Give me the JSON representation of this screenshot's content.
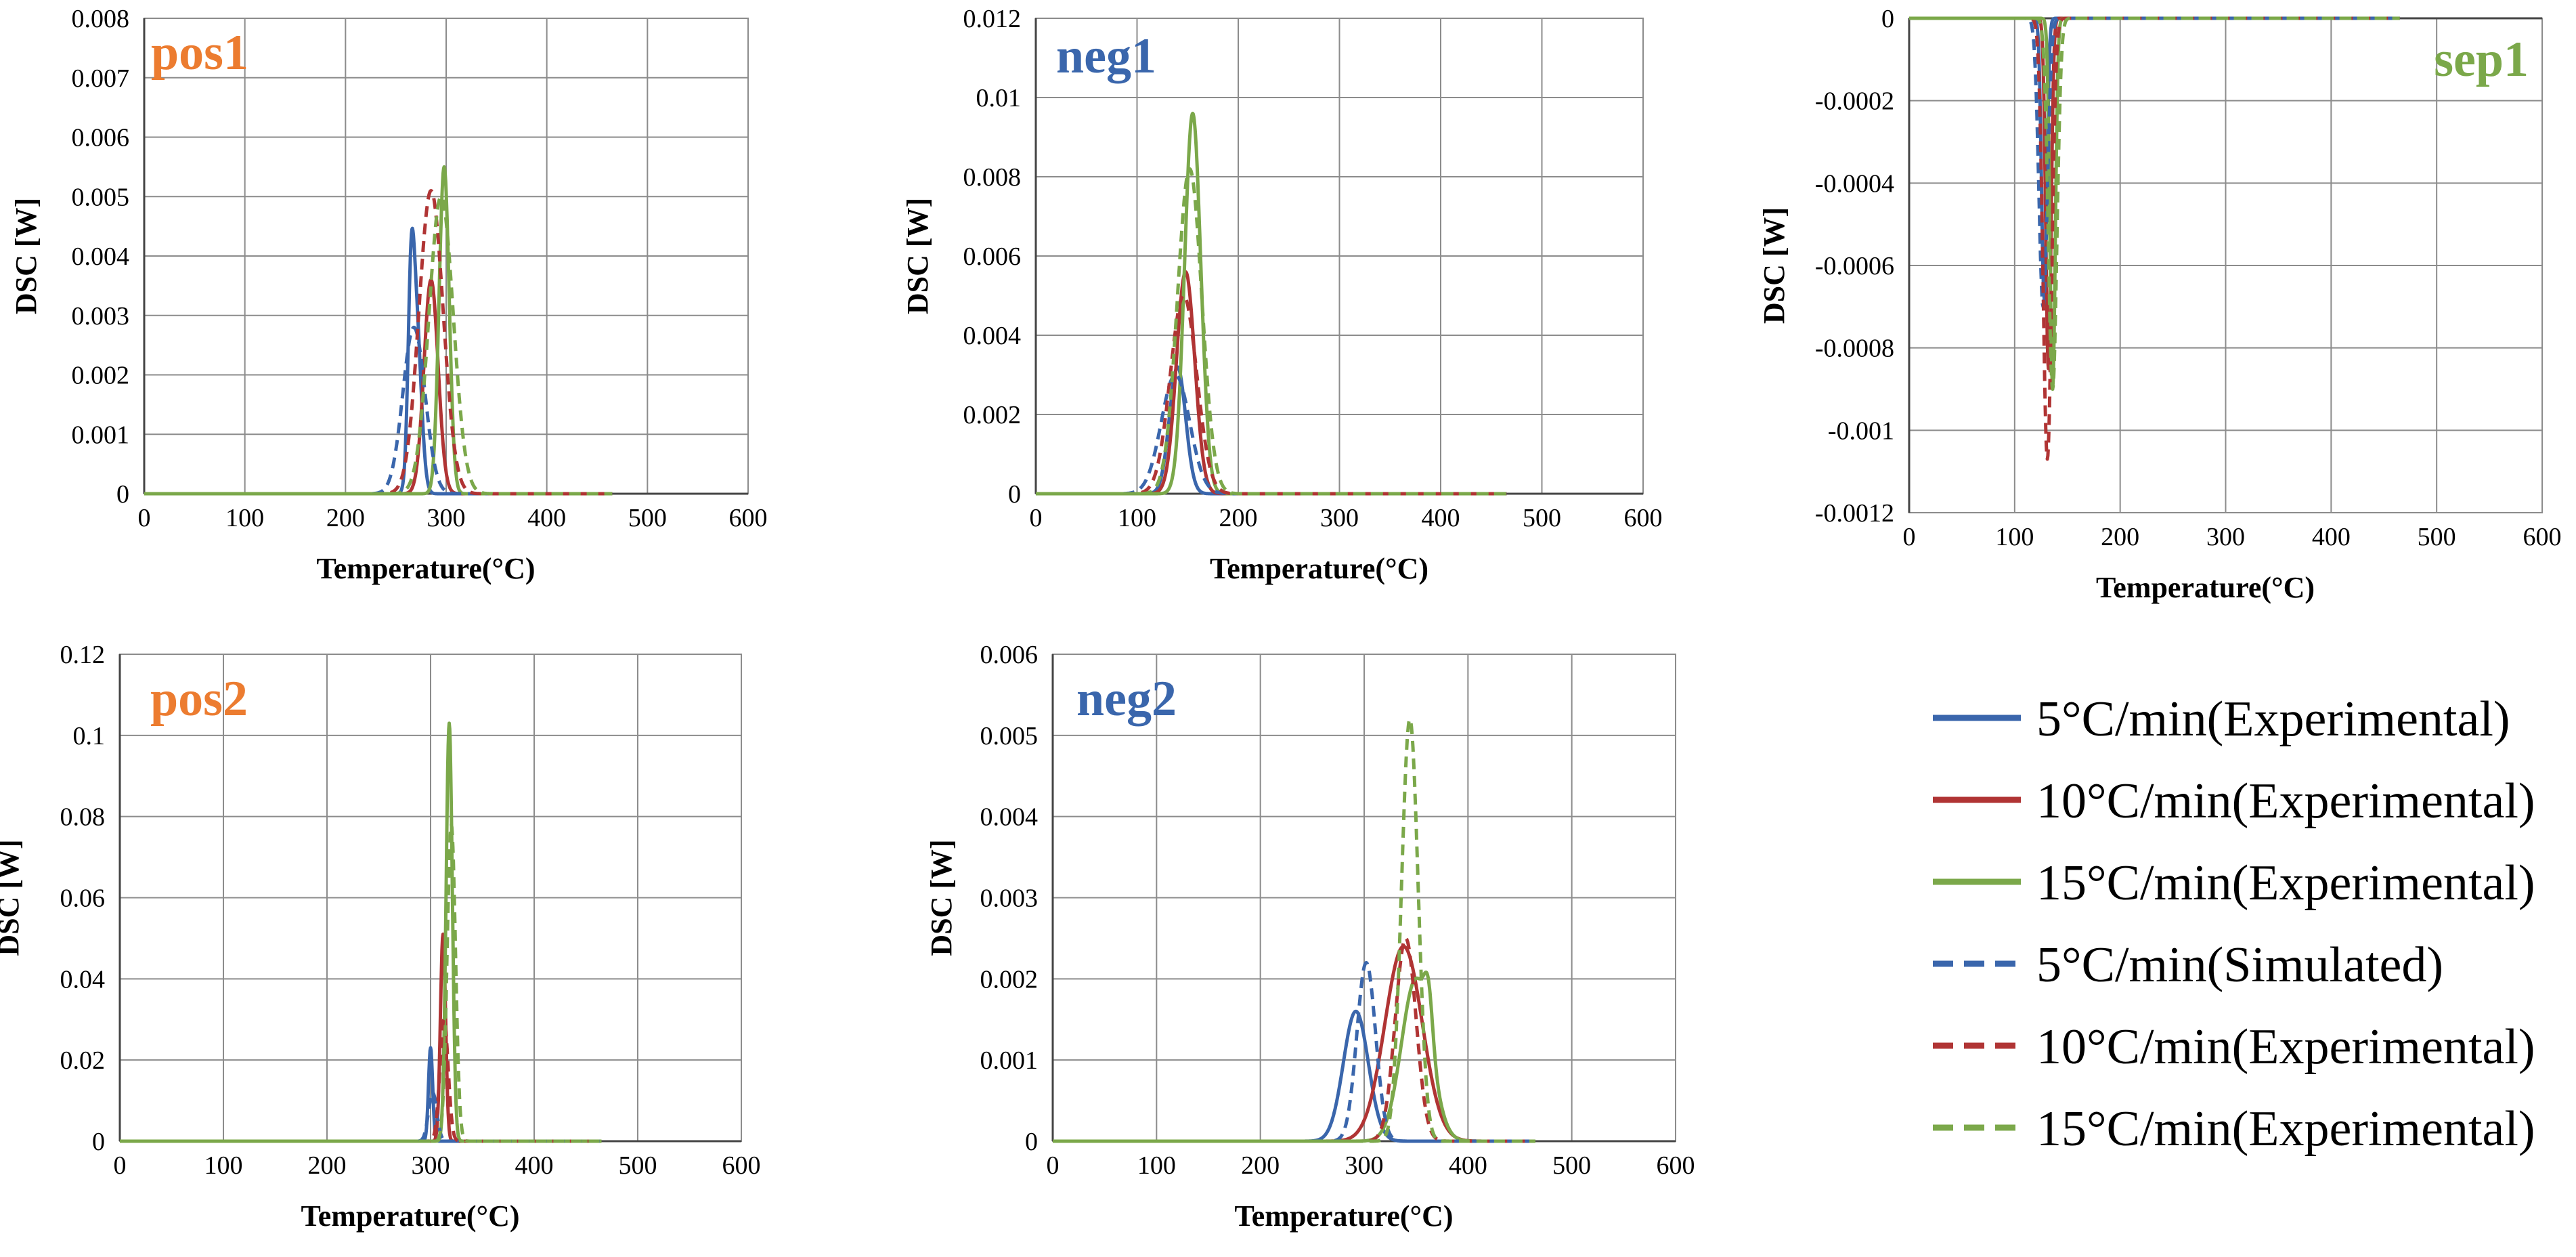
{
  "figure": {
    "legend": [
      {
        "label": "5°C/min(Experimental)",
        "color": "#3A66AC",
        "dashed": false
      },
      {
        "label": "10°C/min(Experimental)",
        "color": "#B03434",
        "dashed": false
      },
      {
        "label": "15°C/min(Experimental)",
        "color": "#7BA84A",
        "dashed": false
      },
      {
        "label": "5°C/min(Simulated)",
        "color": "#3A66AC",
        "dashed": true
      },
      {
        "label": "10°C/min(Experimental)",
        "color": "#B03434",
        "dashed": true
      },
      {
        "label": "15°C/min(Experimental)",
        "color": "#7BA84A",
        "dashed": true
      }
    ]
  },
  "chart_data": [
    {
      "id": "pos1",
      "type": "line",
      "title": "pos1",
      "title_color": "#EC7C30",
      "xlabel": "Temperature(°C)",
      "ylabel": "DSC [W]",
      "xlim": [
        0,
        600
      ],
      "ylim": [
        0,
        0.008
      ],
      "xticks": [
        "0",
        "100",
        "200",
        "300",
        "400",
        "500",
        "600"
      ],
      "yticks": [
        "0",
        "0.001",
        "0.002",
        "0.003",
        "0.004",
        "0.005",
        "0.006",
        "0.007",
        "0.008"
      ],
      "grid": true,
      "x_end": 465,
      "series": [
        {
          "name": "5°C/min(Experimental)",
          "color": "#3A66AC",
          "dashed": false,
          "peaks": [
            {
              "x": 270,
              "y": 0.003,
              "w": 5
            },
            {
              "x": 265,
              "y": 0.0024,
              "w": 3
            }
          ]
        },
        {
          "name": "10°C/min(Experimental)",
          "color": "#B03434",
          "dashed": false,
          "peaks": [
            {
              "x": 285,
              "y": 0.0036,
              "w": 7
            }
          ]
        },
        {
          "name": "15°C/min(Experimental)",
          "color": "#7BA84A",
          "dashed": false,
          "peaks": [
            {
              "x": 298,
              "y": 0.0055,
              "w": 5
            }
          ]
        },
        {
          "name": "5°C/min(Simulated)",
          "color": "#3A66AC",
          "dashed": true,
          "peaks": [
            {
              "x": 268,
              "y": 0.0028,
              "w": 11
            }
          ]
        },
        {
          "name": "10°C/min(Experimental)",
          "color": "#B03434",
          "dashed": true,
          "peaks": [
            {
              "x": 285,
              "y": 0.0051,
              "w": 12
            }
          ]
        },
        {
          "name": "15°C/min(Experimental)",
          "color": "#7BA84A",
          "dashed": true,
          "peaks": [
            {
              "x": 295,
              "y": 0.005,
              "w": 12
            }
          ]
        }
      ]
    },
    {
      "id": "neg1",
      "type": "line",
      "title": "neg1",
      "title_color": "#3A66AC",
      "xlabel": "Temperature(°C)",
      "ylabel": "DSC [W]",
      "xlim": [
        0,
        600
      ],
      "ylim": [
        0,
        0.012
      ],
      "xticks": [
        "0",
        "100",
        "200",
        "300",
        "400",
        "500",
        "600"
      ],
      "yticks": [
        "0",
        "0.002",
        "0.004",
        "0.006",
        "0.008",
        "0.01",
        "0.012"
      ],
      "grid": true,
      "x_end": 465,
      "series": [
        {
          "name": "5°C/min(Experimental)",
          "color": "#3A66AC",
          "dashed": false,
          "peaks": [
            {
              "x": 140,
              "y": 0.0032,
              "w": 8
            }
          ]
        },
        {
          "name": "10°C/min(Experimental)",
          "color": "#B03434",
          "dashed": false,
          "peaks": [
            {
              "x": 148,
              "y": 0.0056,
              "w": 9
            }
          ]
        },
        {
          "name": "15°C/min(Experimental)",
          "color": "#7BA84A",
          "dashed": false,
          "peaks": [
            {
              "x": 155,
              "y": 0.0096,
              "w": 8
            }
          ]
        },
        {
          "name": "5°C/min(Simulated)",
          "color": "#3A66AC",
          "dashed": true,
          "peaks": [
            {
              "x": 138,
              "y": 0.003,
              "w": 14
            }
          ]
        },
        {
          "name": "10°C/min(Experimental)",
          "color": "#B03434",
          "dashed": true,
          "peaks": [
            {
              "x": 146,
              "y": 0.005,
              "w": 13
            }
          ]
        },
        {
          "name": "15°C/min(Experimental)",
          "color": "#7BA84A",
          "dashed": true,
          "peaks": [
            {
              "x": 152,
              "y": 0.0082,
              "w": 12
            }
          ]
        }
      ]
    },
    {
      "id": "sep1",
      "type": "line",
      "title": "sep1",
      "title_color": "#7BA84A",
      "xlabel": "Temperature(°C)",
      "ylabel": "DSC [W]",
      "xlim": [
        0,
        600
      ],
      "ylim": [
        -0.0012,
        0
      ],
      "xticks": [
        "0",
        "100",
        "200",
        "300",
        "400",
        "500",
        "600"
      ],
      "yticks": [
        "-0.0012",
        "-0.001",
        "-0.0008",
        "-0.0006",
        "-0.0004",
        "-0.0002",
        "0"
      ],
      "grid": true,
      "x_end": 465,
      "series": [
        {
          "name": "5°C/min(Experimental)",
          "color": "#3A66AC",
          "dashed": false,
          "peaks": [
            {
              "x": 128,
              "y": -0.00068,
              "w": 2.5
            }
          ]
        },
        {
          "name": "10°C/min(Experimental)",
          "color": "#B03434",
          "dashed": false,
          "peaks": [
            {
              "x": 132,
              "y": -0.00085,
              "w": 2.5
            }
          ]
        },
        {
          "name": "15°C/min(Experimental)",
          "color": "#7BA84A",
          "dashed": false,
          "peaks": [
            {
              "x": 136,
              "y": -0.0009,
              "w": 2.5
            }
          ]
        },
        {
          "name": "5°C/min(Simulated)",
          "color": "#3A66AC",
          "dashed": true,
          "peaks": [
            {
              "x": 127,
              "y": -0.0007,
              "w": 4
            }
          ]
        },
        {
          "name": "10°C/min(Experimental)",
          "color": "#B03434",
          "dashed": true,
          "peaks": [
            {
              "x": 131,
              "y": -0.00107,
              "w": 4
            }
          ]
        },
        {
          "name": "15°C/min(Experimental)",
          "color": "#7BA84A",
          "dashed": true,
          "peaks": [
            {
              "x": 136,
              "y": -0.0009,
              "w": 4
            }
          ]
        }
      ]
    },
    {
      "id": "pos2",
      "type": "line",
      "title": "pos2",
      "title_color": "#EC7C30",
      "xlabel": "Temperature(°C)",
      "ylabel": "DSC [W]",
      "xlim": [
        0,
        600
      ],
      "ylim": [
        0,
        0.12
      ],
      "xticks": [
        "0",
        "100",
        "200",
        "300",
        "400",
        "500",
        "600"
      ],
      "yticks": [
        "0",
        "0.02",
        "0.04",
        "0.06",
        "0.08",
        "0.1",
        "0.12"
      ],
      "grid": true,
      "x_end": 465,
      "series": [
        {
          "name": "5°C/min(Experimental)",
          "color": "#3A66AC",
          "dashed": false,
          "peaks": [
            {
              "x": 300,
              "y": 0.023,
              "w": 2
            }
          ]
        },
        {
          "name": "10°C/min(Experimental)",
          "color": "#B03434",
          "dashed": false,
          "peaks": [
            {
              "x": 312,
              "y": 0.051,
              "w": 2.5
            }
          ]
        },
        {
          "name": "15°C/min(Experimental)",
          "color": "#7BA84A",
          "dashed": false,
          "peaks": [
            {
              "x": 318,
              "y": 0.103,
              "w": 3
            }
          ]
        },
        {
          "name": "5°C/min(Simulated)",
          "color": "#3A66AC",
          "dashed": true,
          "peaks": [
            {
              "x": 302,
              "y": 0.012,
              "w": 4
            }
          ]
        },
        {
          "name": "10°C/min(Experimental)",
          "color": "#B03434",
          "dashed": true,
          "peaks": [
            {
              "x": 313,
              "y": 0.03,
              "w": 4
            }
          ]
        },
        {
          "name": "15°C/min(Experimental)",
          "color": "#7BA84A",
          "dashed": true,
          "peaks": [
            {
              "x": 320,
              "y": 0.078,
              "w": 4
            }
          ]
        }
      ]
    },
    {
      "id": "neg2",
      "type": "line",
      "title": "neg2",
      "title_color": "#3A66AC",
      "xlabel": "Temperature(°C)",
      "ylabel": "DSC [W]",
      "xlim": [
        0,
        600
      ],
      "ylim": [
        0,
        0.006
      ],
      "xticks": [
        "0",
        "100",
        "200",
        "300",
        "400",
        "500",
        "600"
      ],
      "yticks": [
        "0",
        "0.001",
        "0.002",
        "0.003",
        "0.004",
        "0.005",
        "0.006"
      ],
      "grid": true,
      "x_end": 465,
      "series": [
        {
          "name": "5°C/min(Experimental)",
          "color": "#3A66AC",
          "dashed": false,
          "peaks": [
            {
              "x": 292,
              "y": 0.0016,
              "w": 12
            }
          ]
        },
        {
          "name": "10°C/min(Experimental)",
          "color": "#B03434",
          "dashed": false,
          "peaks": [
            {
              "x": 338,
              "y": 0.0024,
              "w": 18
            }
          ]
        },
        {
          "name": "15°C/min(Experimental)",
          "color": "#7BA84A",
          "dashed": false,
          "peaks": [
            {
              "x": 350,
              "y": 0.002,
              "w": 14
            },
            {
              "x": 362,
              "y": 0.0006,
              "w": 4
            }
          ]
        },
        {
          "name": "5°C/min(Simulated)",
          "color": "#3A66AC",
          "dashed": true,
          "peaks": [
            {
              "x": 302,
              "y": 0.0022,
              "w": 9
            }
          ]
        },
        {
          "name": "10°C/min(Experimental)",
          "color": "#B03434",
          "dashed": true,
          "peaks": [
            {
              "x": 340,
              "y": 0.0025,
              "w": 10
            }
          ]
        },
        {
          "name": "15°C/min(Experimental)",
          "color": "#7BA84A",
          "dashed": true,
          "peaks": [
            {
              "x": 344,
              "y": 0.0052,
              "w": 8
            }
          ]
        }
      ]
    }
  ]
}
